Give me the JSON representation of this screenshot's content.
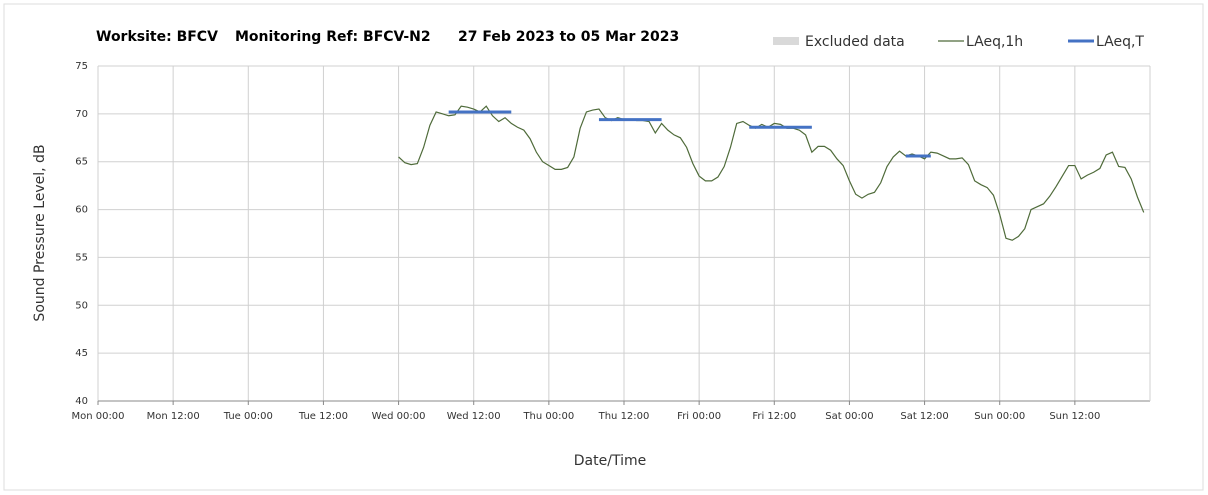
{
  "chart_data": {
    "type": "line",
    "title": [
      "Worksite: BFCV",
      "Monitoring Ref: BFCV-N2",
      "27 Feb 2023 to 05 Mar 2023"
    ],
    "xlabel": "Date/Time",
    "ylabel": "Sound Pressure Level, dB",
    "xlim": [
      0,
      168
    ],
    "ylim": [
      40,
      75
    ],
    "xticks": [
      {
        "value": 0,
        "label": "Mon 00:00"
      },
      {
        "value": 12,
        "label": "Mon 12:00"
      },
      {
        "value": 24,
        "label": "Tue 00:00"
      },
      {
        "value": 36,
        "label": "Tue 12:00"
      },
      {
        "value": 48,
        "label": "Wed 00:00"
      },
      {
        "value": 60,
        "label": "Wed 12:00"
      },
      {
        "value": 72,
        "label": "Thu 00:00"
      },
      {
        "value": 84,
        "label": "Thu 12:00"
      },
      {
        "value": 96,
        "label": "Fri 00:00"
      },
      {
        "value": 108,
        "label": "Fri 12:00"
      },
      {
        "value": 120,
        "label": "Sat 00:00"
      },
      {
        "value": 132,
        "label": "Sat 12:00"
      },
      {
        "value": 144,
        "label": "Sun 00:00"
      },
      {
        "value": 156,
        "label": "Sun 12:00"
      }
    ],
    "yticks": [
      40,
      45,
      50,
      55,
      60,
      65,
      70,
      75
    ],
    "grid": true,
    "excluded": {
      "name": "Excluded data",
      "color": "#d9d9d9"
    },
    "x": [
      48,
      49,
      50,
      51,
      52,
      53,
      54,
      55,
      56,
      57,
      58,
      59,
      60,
      61,
      62,
      63,
      64,
      65,
      66,
      67,
      68,
      69,
      70,
      71,
      72,
      73,
      74,
      75,
      76,
      77,
      78,
      79,
      80,
      81,
      82,
      83,
      84,
      85,
      86,
      87,
      88,
      89,
      90,
      91,
      92,
      93,
      94,
      95,
      96,
      97,
      98,
      99,
      100,
      101,
      102,
      103,
      104,
      105,
      106,
      107,
      108,
      109,
      110,
      111,
      112,
      113,
      114,
      115,
      116,
      117,
      118,
      119,
      120,
      121,
      122,
      123,
      124,
      125,
      126,
      127,
      128,
      129,
      130,
      131,
      132,
      133,
      134,
      135,
      136,
      137,
      138,
      139,
      140,
      141,
      142,
      143,
      144,
      145,
      146,
      147,
      148,
      149,
      150,
      151,
      152,
      153,
      154,
      155,
      156,
      157,
      158,
      159,
      160,
      161,
      162,
      163,
      164,
      165,
      166,
      167
    ],
    "series": [
      {
        "name": "LAeq,1h",
        "color": "#4f6b3a",
        "values": [
          65.5,
          64.9,
          64.7,
          64.8,
          66.5,
          68.8,
          70.2,
          70.0,
          69.8,
          69.9,
          70.8,
          70.7,
          70.5,
          70.2,
          70.8,
          69.8,
          69.2,
          69.6,
          69.0,
          68.6,
          68.3,
          67.4,
          66.0,
          65.0,
          64.6,
          64.2,
          64.2,
          64.4,
          65.5,
          68.5,
          70.2,
          70.4,
          70.5,
          69.6,
          69.3,
          69.6,
          69.4,
          69.4,
          69.3,
          69.3,
          69.2,
          68.0,
          69.0,
          68.3,
          67.8,
          67.5,
          66.5,
          64.8,
          63.5,
          63.0,
          63.0,
          63.4,
          64.5,
          66.5,
          69.0,
          69.2,
          68.8,
          68.5,
          68.9,
          68.6,
          69.0,
          68.9,
          68.5,
          68.5,
          68.3,
          67.8,
          66.0,
          66.6,
          66.6,
          66.2,
          65.3,
          64.6,
          63.0,
          61.6,
          61.2,
          61.6,
          61.8,
          62.8,
          64.5,
          65.5,
          66.1,
          65.6,
          65.8,
          65.6,
          65.3,
          66.0,
          65.9,
          65.6,
          65.3,
          65.3,
          65.4,
          64.7,
          63.0,
          62.6,
          62.3,
          61.5,
          59.5,
          57.0,
          56.8,
          57.2,
          58.0,
          60.0,
          60.3,
          60.6,
          61.4,
          62.4,
          63.5,
          64.6,
          64.6,
          63.2,
          63.6,
          63.9,
          64.3,
          65.7,
          66.0,
          64.5,
          64.4,
          63.2,
          61.3,
          59.7
        ]
      },
      {
        "name": "LAeq,T",
        "color": "#4472c4",
        "segments": [
          {
            "x": [
              56,
              66
            ],
            "value": 70.2
          },
          {
            "x": [
              80,
              90
            ],
            "value": 69.4
          },
          {
            "x": [
              104,
              114
            ],
            "value": 68.6
          },
          {
            "x": [
              129,
              133
            ],
            "value": 65.6
          }
        ]
      }
    ]
  }
}
